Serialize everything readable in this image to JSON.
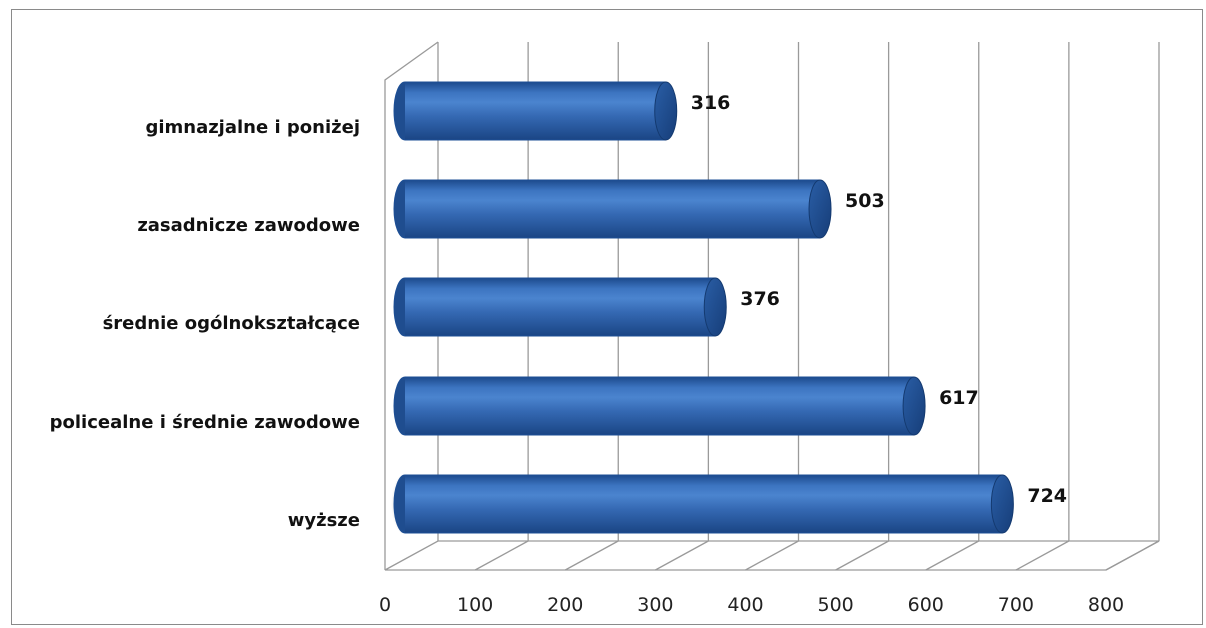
{
  "chart_data": {
    "type": "bar",
    "orientation": "horizontal",
    "style": "3d-cylinder",
    "categories": [
      "gimnazjalne i poniżej",
      "zasadnicze zawodowe",
      "średnie ogólnokształcące",
      "policealne i średnie zawodowe",
      "wyższe"
    ],
    "values": [
      316,
      503,
      376,
      617,
      724
    ],
    "data_labels": [
      "316",
      "503",
      "376",
      "617",
      "724"
    ],
    "title": "",
    "xlabel": "",
    "ylabel": "",
    "xlim": [
      0,
      800
    ],
    "ticks": [
      0,
      100,
      200,
      300,
      400,
      500,
      600,
      700,
      800
    ],
    "tick_labels": [
      "0",
      "100",
      "200",
      "300",
      "400",
      "500",
      "600",
      "700",
      "800"
    ],
    "grid": true,
    "legend": "none",
    "bar_color": "#2f66b0",
    "bar_edge_color": "#1d4f96",
    "gridline_color": "#9a9a9a"
  }
}
